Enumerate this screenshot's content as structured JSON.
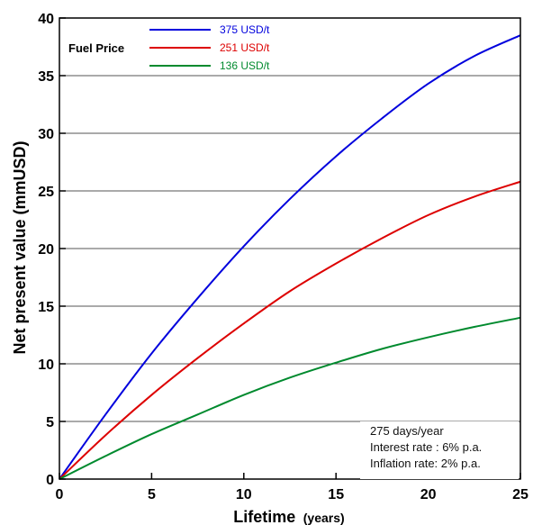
{
  "chart_data": {
    "type": "line",
    "xlabel": "Lifetime",
    "xlabel_unit": "(years)",
    "ylabel": "Net present value (mmUSD)",
    "xlim": [
      0,
      25
    ],
    "ylim": [
      0,
      40
    ],
    "x_ticks": [
      0,
      5,
      10,
      15,
      20,
      25
    ],
    "y_ticks": [
      0,
      5,
      10,
      15,
      20,
      25,
      30,
      35,
      40
    ],
    "grid": "horizontal",
    "legend_title": "Fuel Price",
    "legend_position": "top-left",
    "x": [
      0,
      2.5,
      5,
      7.5,
      10,
      12.5,
      15,
      17.5,
      20,
      22.5,
      25
    ],
    "series": [
      {
        "name": "375 USD/t",
        "color": "#0000dd",
        "values": [
          0,
          5.6,
          10.9,
          15.7,
          20.2,
          24.3,
          28.0,
          31.3,
          34.3,
          36.7,
          38.5
        ]
      },
      {
        "name": "251 USD/t",
        "color": "#dd0000",
        "values": [
          0,
          3.8,
          7.3,
          10.5,
          13.5,
          16.3,
          18.7,
          20.9,
          22.9,
          24.5,
          25.8
        ]
      },
      {
        "name": "136 USD/t",
        "color": "#008a2e",
        "values": [
          0,
          2.0,
          3.9,
          5.6,
          7.3,
          8.8,
          10.1,
          11.3,
          12.3,
          13.2,
          14.0
        ]
      }
    ],
    "annotations": [
      "275 days/year",
      "Interest rate : 6% p.a.",
      "Inflation rate: 2% p.a."
    ]
  }
}
